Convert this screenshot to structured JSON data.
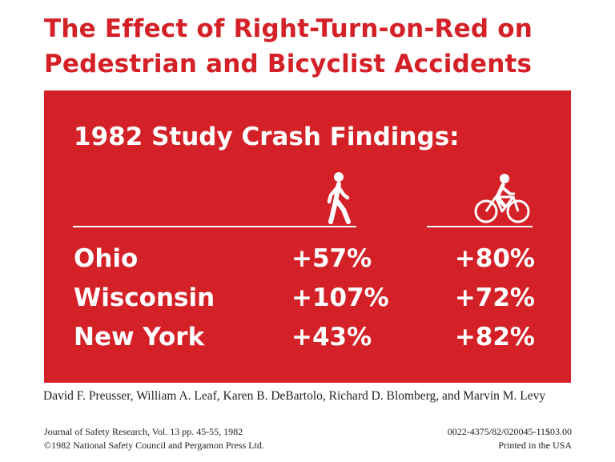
{
  "title_line1": "The Effect of Right-Turn-on-Red on",
  "title_line2": "Pedestrian and Bicyclist Accidents",
  "colors": {
    "panel": "#d42027",
    "text_on_panel": "#ffffff"
  },
  "chart_data": {
    "type": "table",
    "title": "1982 Study Crash Findings:",
    "columns": [
      {
        "icon": "pedestrian-icon",
        "meaning": "Pedestrian"
      },
      {
        "icon": "bicyclist-icon",
        "meaning": "Bicyclist"
      }
    ],
    "rows": [
      {
        "state": "Ohio",
        "pedestrian": "+57%",
        "bicyclist": "+80%"
      },
      {
        "state": "Wisconsin",
        "pedestrian": "+107%",
        "bicyclist": "+72%"
      },
      {
        "state": "New York",
        "pedestrian": "+43%",
        "bicyclist": "+82%"
      }
    ],
    "values": {
      "pedestrian": [
        57,
        107,
        43
      ],
      "bicyclist": [
        80,
        72,
        82
      ],
      "units": "percent increase"
    }
  },
  "citation": {
    "authors": "David F. Preusser, William A. Leaf, Karen B. DeBartolo, Richard D. Blomberg, and Marvin M. Levy",
    "journal": "Journal of Safety Research, Vol. 13 pp. 45-55, 1982",
    "copyright": "©1982 National Safety Council and Pergamon Press Ltd.",
    "code": "0022-4375/82/020045-11$03.00",
    "printed": "Printed in the USA"
  }
}
